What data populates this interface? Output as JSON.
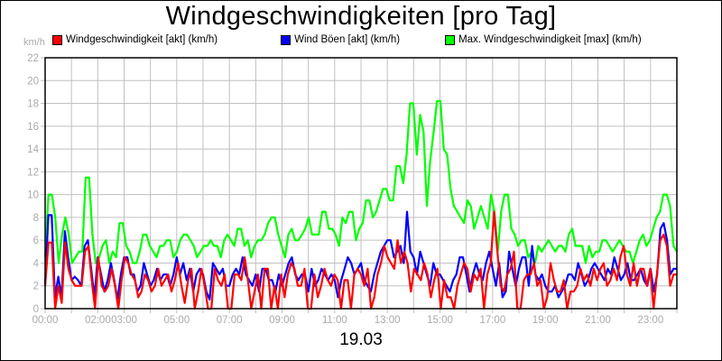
{
  "chart": {
    "title": "Windgeschwindigkeiten [pro Tag]",
    "y_unit": "km/h",
    "date_label": "19.03",
    "legend": [
      {
        "label": "Windgeschwindigkeit [akt] (km/h)",
        "color": "#ff0000"
      },
      {
        "label": "Wind Böen [akt] (km/h)",
        "color": "#0000ff"
      },
      {
        "label": "Max. Windgeschwindigkeit [max] (km/h)",
        "color": "#00ff00"
      }
    ],
    "colors": {
      "grid": "#c0c0c0",
      "axis": "#000000",
      "tick_text": "#aaaaaa"
    }
  },
  "chart_data": {
    "type": "line",
    "title": "Windgeschwindigkeiten [pro Tag]",
    "xlabel": "19.03",
    "ylabel": "km/h",
    "ylim": [
      0,
      22
    ],
    "xlim_hours": [
      0,
      24
    ],
    "y_ticks": [
      0,
      2,
      4,
      6,
      8,
      10,
      12,
      14,
      16,
      18,
      20,
      22
    ],
    "x_tick_labels": [
      {
        "label": "00:00",
        "hour": 0
      },
      {
        "label": "02:00",
        "hour": 2
      },
      {
        "label": "03:00",
        "hour": 3
      },
      {
        "label": "05:00",
        "hour": 5
      },
      {
        "label": "07:00",
        "hour": 7
      },
      {
        "label": "09:00",
        "hour": 9
      },
      {
        "label": "11:00",
        "hour": 11
      },
      {
        "label": "13:00",
        "hour": 13
      },
      {
        "label": "15:00",
        "hour": 15
      },
      {
        "label": "17:00",
        "hour": 17
      },
      {
        "label": "19:00",
        "hour": 19
      },
      {
        "label": "21:00",
        "hour": 21
      },
      {
        "label": "23:00",
        "hour": 23
      }
    ],
    "grid": true,
    "legend_position": "top",
    "x_step_minutes": 10,
    "series": [
      {
        "name": "Max. Windgeschwindigkeit [max] (km/h)",
        "color": "#00ff00",
        "values": [
          4.5,
          10,
          10,
          8,
          4,
          6.5,
          8,
          6.5,
          4,
          4.5,
          5,
          5,
          11.5,
          11.5,
          6.5,
          4,
          4.5,
          5.5,
          6,
          4,
          5,
          4.5,
          7.5,
          7.5,
          5.5,
          5,
          4,
          4,
          5,
          6.5,
          6.5,
          5.5,
          5,
          4.5,
          5.5,
          5.5,
          6,
          6,
          4.5,
          5,
          6,
          6.5,
          6.5,
          6,
          5.5,
          4.5,
          5,
          5.5,
          5.5,
          6,
          5.5,
          5.5,
          4.5,
          6,
          6.5,
          6,
          5.5,
          7,
          7,
          5.5,
          6,
          4.5,
          5.5,
          6,
          6,
          6.5,
          7.5,
          8,
          8,
          6.5,
          5.5,
          4.5,
          6.5,
          7,
          6,
          6,
          6.5,
          7,
          8,
          6.5,
          6.5,
          6.5,
          8.5,
          8.5,
          7,
          7,
          6.5,
          5.5,
          8,
          7.5,
          8.5,
          8.5,
          6,
          7,
          7.5,
          9.5,
          9.5,
          8,
          8.5,
          9.5,
          10.5,
          10.5,
          9.5,
          9.5,
          12.5,
          12.5,
          11,
          13.5,
          18,
          18,
          13.5,
          17,
          15.5,
          9,
          13,
          15.5,
          18.2,
          18.2,
          14,
          13.5,
          10.5,
          9,
          8.5,
          8,
          7.5,
          9.5,
          9,
          7,
          8,
          9,
          8,
          7,
          10,
          8.5,
          5,
          8.5,
          10,
          10,
          7,
          6.5,
          5.5,
          6,
          6,
          4.5,
          5,
          4,
          5.5,
          5,
          5.5,
          6,
          5.5,
          5,
          5.5,
          5.5,
          5,
          6.5,
          7,
          5.5,
          5.5,
          5.5,
          4,
          5.5,
          4.5,
          5,
          5,
          6,
          6,
          5.5,
          5,
          5.5,
          6,
          5.5,
          5,
          5,
          4,
          5,
          6,
          6.5,
          5.5,
          6,
          7,
          8,
          8.5,
          10,
          10,
          9,
          5.5,
          5
        ]
      },
      {
        "name": "Wind Böen [akt] (km/h)",
        "color": "#0000ff",
        "values": [
          2.2,
          8.2,
          8.2,
          1,
          2.8,
          1,
          6.8,
          4.5,
          2.5,
          2.8,
          2.5,
          2,
          5.5,
          6,
          3.5,
          1,
          4.5,
          3,
          1.5,
          2.5,
          4,
          2.5,
          0.8,
          3,
          4.5,
          4.5,
          3,
          3,
          1.5,
          2,
          4,
          3,
          2,
          2.5,
          3.5,
          2.5,
          3,
          3,
          2,
          3,
          4.5,
          3,
          4,
          2.5,
          3.5,
          1.5,
          3,
          3.5,
          3,
          1.5,
          0.8,
          4,
          3.5,
          3,
          3.5,
          2,
          2,
          3,
          3.5,
          3,
          4.5,
          3,
          2.5,
          2,
          3,
          1.5,
          3.5,
          3.5,
          2.5,
          2.5,
          1.5,
          3,
          2,
          3,
          4,
          4.5,
          3,
          2.5,
          3,
          3,
          1.5,
          3.5,
          2,
          2.5,
          3.5,
          3,
          2.5,
          3,
          2.5,
          1,
          2.5,
          3.5,
          4.5,
          4,
          3,
          3.5,
          4,
          2.5,
          2,
          1.5,
          3,
          4,
          5,
          5.5,
          6,
          6,
          4.5,
          5,
          5.5,
          4,
          8.5,
          5,
          4.5,
          3,
          5,
          4,
          3,
          2,
          4,
          3,
          3,
          2.5,
          2,
          1.5,
          2.5,
          3,
          4.5,
          4.5,
          3,
          1.5,
          3,
          4,
          3,
          2.5,
          4,
          5,
          3.5,
          2,
          4,
          1,
          1.5,
          5,
          3.5,
          2,
          3.5,
          4.5,
          4.5,
          2,
          5.5,
          3,
          2.5,
          3,
          2,
          1.5,
          1.5,
          2,
          1,
          1.5,
          2,
          3,
          3,
          2.5,
          4,
          3,
          2,
          2.5,
          3.5,
          4,
          3.5,
          3,
          2.5,
          3.5,
          3,
          4.5,
          3.5,
          2.5,
          3,
          4,
          2.5,
          2.5,
          3,
          3.5,
          2.5,
          2,
          3.5,
          1.5,
          3,
          7,
          7.5,
          6,
          3,
          3.5,
          3.5
        ]
      },
      {
        "name": "Windgeschwindigkeit [akt] (km/h)",
        "color": "#ff0000",
        "values": [
          2,
          5.8,
          5.8,
          0,
          2,
          0.5,
          5.8,
          3.5,
          2.5,
          2,
          2,
          2,
          5,
          5.5,
          2.5,
          0,
          4.5,
          2,
          1.5,
          2,
          3.5,
          2,
          0,
          2.5,
          4.5,
          4,
          3,
          2.5,
          1,
          1.5,
          3,
          2.5,
          1.5,
          2,
          3.5,
          2,
          2.5,
          3,
          1.5,
          2.5,
          4,
          2,
          0.5,
          2.5,
          3.5,
          0,
          1.5,
          3.5,
          2,
          0,
          0,
          3.5,
          2.5,
          2,
          3,
          0,
          0,
          3,
          3,
          2.5,
          4.5,
          2.5,
          0,
          1.5,
          3,
          0,
          3.5,
          3.5,
          0,
          2,
          0,
          3,
          1,
          3,
          4,
          3.5,
          2,
          2,
          3.5,
          0,
          0,
          3,
          1,
          2,
          3.5,
          2.5,
          2,
          3,
          2.5,
          0,
          2.5,
          2.5,
          0,
          3,
          3.5,
          3,
          2,
          3.5,
          0,
          1,
          3,
          4,
          5.5,
          4.5,
          4,
          3.5,
          6,
          4,
          5,
          4,
          1.5,
          3.5,
          3,
          2.5,
          4,
          3,
          1,
          2.5,
          3.5,
          0,
          2.5,
          1,
          1,
          0,
          2,
          3,
          4,
          3.5,
          1.5,
          3,
          2.5,
          3.5,
          0,
          3,
          4,
          8.5,
          5,
          2,
          1.5,
          3,
          3.5,
          5,
          0,
          0,
          2.5,
          3,
          3,
          4,
          2,
          2.5,
          0,
          1,
          4,
          2.5,
          1.5,
          1.5,
          2.5,
          0,
          1.5,
          1.5,
          2,
          3.5,
          2.5,
          3,
          2,
          3.5,
          2.5,
          3.5,
          4,
          2,
          2.5,
          3.5,
          2.5,
          4.5,
          5.5,
          3,
          2,
          4,
          2,
          3.5,
          3.5,
          2,
          3.5,
          0,
          3,
          6,
          6.5,
          5.5,
          2,
          3,
          3
        ]
      }
    ]
  }
}
